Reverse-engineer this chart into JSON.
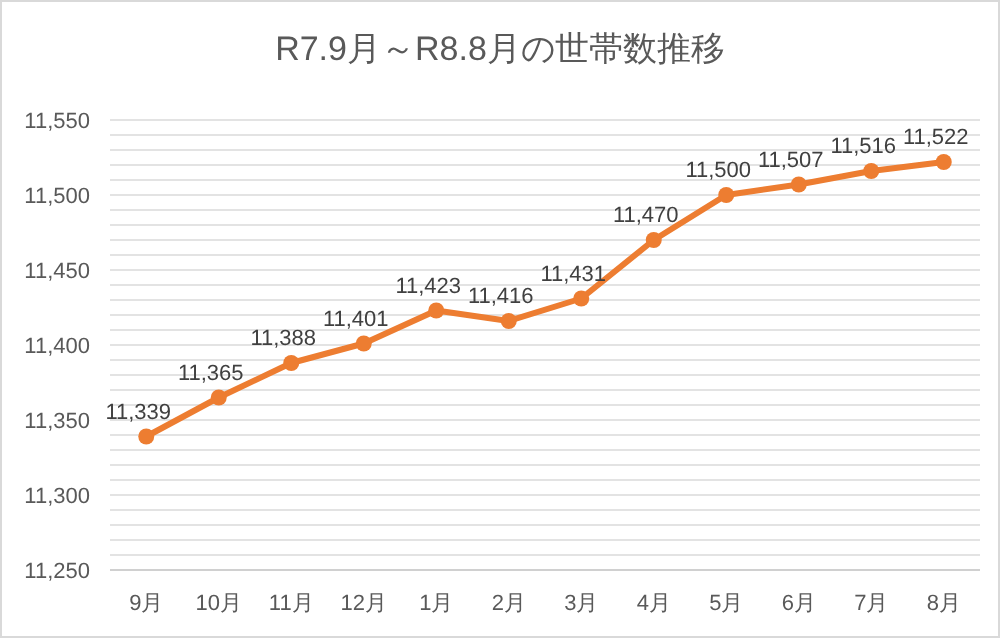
{
  "chart_data": {
    "type": "line",
    "title": "R7.9月～R8.8月の世帯数推移",
    "categories": [
      "9月",
      "10月",
      "11月",
      "12月",
      "1月",
      "2月",
      "3月",
      "4月",
      "5月",
      "6月",
      "7月",
      "8月"
    ],
    "series": [
      {
        "color": "#ed7d31",
        "values": [
          11339,
          11365,
          11388,
          11401,
          11423,
          11416,
          11431,
          11470,
          11500,
          11507,
          11516,
          11522
        ]
      }
    ],
    "ylim": [
      11250,
      11550
    ],
    "yticks": [
      {
        "value": 11250,
        "label": "11,250"
      },
      {
        "value": 11260,
        "label": null
      },
      {
        "value": 11270,
        "label": null
      },
      {
        "value": 11280,
        "label": null
      },
      {
        "value": 11290,
        "label": null
      },
      {
        "value": 11300,
        "label": "11,300"
      },
      {
        "value": 11310,
        "label": null
      },
      {
        "value": 11320,
        "label": null
      },
      {
        "value": 11330,
        "label": null
      },
      {
        "value": 11340,
        "label": null
      },
      {
        "value": 11350,
        "label": "11,350"
      },
      {
        "value": 11360,
        "label": null
      },
      {
        "value": 11370,
        "label": null
      },
      {
        "value": 11380,
        "label": null
      },
      {
        "value": 11390,
        "label": null
      },
      {
        "value": 11400,
        "label": "11,400"
      },
      {
        "value": 11410,
        "label": null
      },
      {
        "value": 11420,
        "label": null
      },
      {
        "value": 11430,
        "label": null
      },
      {
        "value": 11440,
        "label": null
      },
      {
        "value": 11450,
        "label": "11,450"
      },
      {
        "value": 11460,
        "label": null
      },
      {
        "value": 11470,
        "label": null
      },
      {
        "value": 11480,
        "label": null
      },
      {
        "value": 11490,
        "label": null
      },
      {
        "value": 11500,
        "label": "11,500"
      },
      {
        "value": 11510,
        "label": null
      },
      {
        "value": 11520,
        "label": null
      },
      {
        "value": 11530,
        "label": null
      },
      {
        "value": 11540,
        "label": null
      },
      {
        "value": 11550,
        "label": "11,550"
      }
    ],
    "grid": "y",
    "marker": "circle",
    "line_style": "solid",
    "value_labels": [
      "11,339",
      "11,365",
      "11,388",
      "11,401",
      "11,423",
      "11,416",
      "11,431",
      "11,470",
      "11,500",
      "11,507",
      "11,516",
      "11,522"
    ]
  }
}
